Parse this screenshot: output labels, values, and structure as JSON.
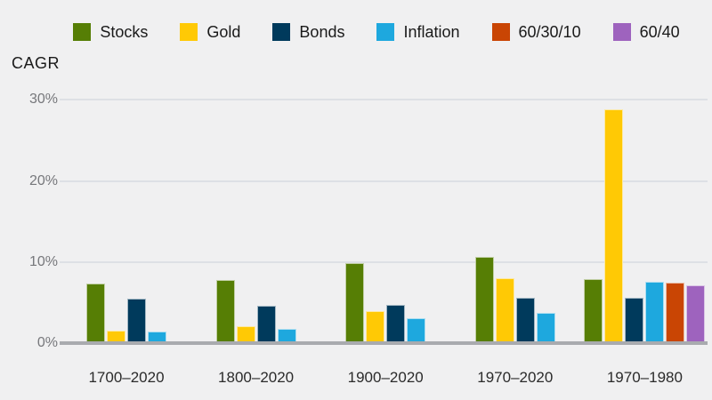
{
  "chart_data": {
    "type": "bar",
    "title": "",
    "ylabel": "CAGR",
    "xlabel": "",
    "unit": "%",
    "grid": true,
    "legend_position": "top",
    "ylim": [
      0,
      31
    ],
    "categories": [
      "1700–2020",
      "1800–2020",
      "1900–2020",
      "1970–2020",
      "1970–1980"
    ],
    "series": [
      {
        "name": "Stocks",
        "color": "#567e05",
        "values": [
          7.1,
          7.6,
          9.6,
          10.4,
          7.7
        ]
      },
      {
        "name": "Gold",
        "color": "#ffc905",
        "values": [
          1.3,
          1.9,
          3.7,
          7.8,
          28.6
        ]
      },
      {
        "name": "Bonds",
        "color": "#003a5c",
        "values": [
          5.3,
          4.4,
          4.5,
          5.4,
          5.4
        ]
      },
      {
        "name": "Inflation",
        "color": "#1ea8de",
        "values": [
          1.2,
          1.5,
          2.9,
          3.5,
          7.4
        ]
      },
      {
        "name": "60/30/10",
        "color": "#c94504",
        "values": [
          null,
          null,
          null,
          null,
          7.2
        ]
      },
      {
        "name": "60/40",
        "color": "#9e63be",
        "values": [
          null,
          null,
          null,
          null,
          6.9
        ]
      }
    ],
    "yticks": [
      {
        "label": "30%",
        "value": 30
      },
      {
        "label": "20%",
        "value": 20
      },
      {
        "label": "10%",
        "value": 10
      },
      {
        "label": "0%",
        "value": 0
      }
    ]
  },
  "colors": {
    "background": "#f0f0f1",
    "gridline": "#dde0e5",
    "axis_line": "#a9abaf",
    "tick_text": "#76777b",
    "label_text": "#2b2b2b"
  }
}
